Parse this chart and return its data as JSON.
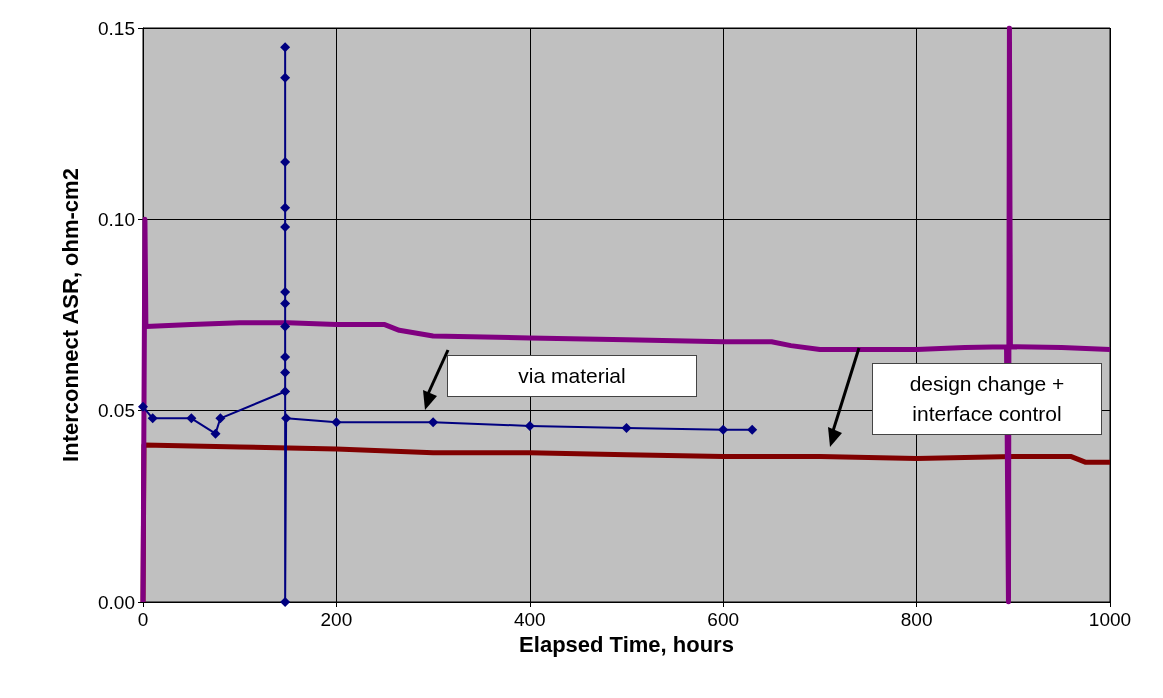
{
  "chart_data": {
    "type": "line",
    "xlabel": "Elapsed Time, hours",
    "ylabel": "Interconnect ASR, ohm-cm2",
    "xlim": [
      0,
      1000
    ],
    "xticks": [
      0,
      200,
      400,
      600,
      800,
      1000
    ],
    "ylim": [
      0,
      0.15
    ],
    "yticks": [
      {
        "value": 0,
        "label": "0.00"
      },
      {
        "value": 0.05,
        "label": "0.05"
      },
      {
        "value": 0.1,
        "label": "0.10"
      },
      {
        "value": 0.15,
        "label": "0.15"
      }
    ],
    "grid": true,
    "series": [
      {
        "color": "#800000",
        "marker": "none",
        "x": [
          0,
          1,
          100,
          200,
          300,
          400,
          500,
          600,
          700,
          800,
          900,
          960,
          975,
          1000
        ],
        "values": [
          0,
          0.041,
          0.0405,
          0.04,
          0.039,
          0.039,
          0.0385,
          0.038,
          0.038,
          0.0375,
          0.038,
          0.038,
          0.0365,
          0.0365
        ]
      },
      {
        "color": "#800080",
        "marker": "none",
        "x": [
          0,
          2,
          3,
          50,
          100,
          150,
          200,
          250,
          265,
          300,
          400,
          500,
          600,
          650,
          670,
          700,
          800,
          850,
          893,
          895,
          896,
          897,
          950,
          1000
        ],
        "values": [
          0,
          0.1,
          0.072,
          0.0725,
          0.073,
          0.073,
          0.0725,
          0.0725,
          0.071,
          0.0695,
          0.069,
          0.0685,
          0.068,
          0.068,
          0.067,
          0.066,
          0.066,
          0.0665,
          0.0667,
          0,
          0.15,
          0.0667,
          0.0665,
          0.066
        ]
      },
      {
        "color": "#000080",
        "marker": "diamond",
        "x": [
          0,
          10,
          50,
          75,
          80,
          147,
          147,
          147,
          147,
          147,
          147,
          147,
          147,
          147,
          147,
          147,
          147,
          148,
          200,
          300,
          400,
          500,
          600,
          630
        ],
        "values": [
          0.051,
          0.048,
          0.048,
          0.044,
          0.048,
          0.055,
          0.06,
          0.064,
          0.072,
          0.078,
          0.081,
          0.098,
          0.103,
          0.115,
          0.137,
          0.145,
          0,
          0.048,
          0.047,
          0.047,
          0.046,
          0.0455,
          0.045,
          0.045
        ]
      }
    ],
    "annotations": [
      "via material",
      "design change + interface control"
    ]
  }
}
